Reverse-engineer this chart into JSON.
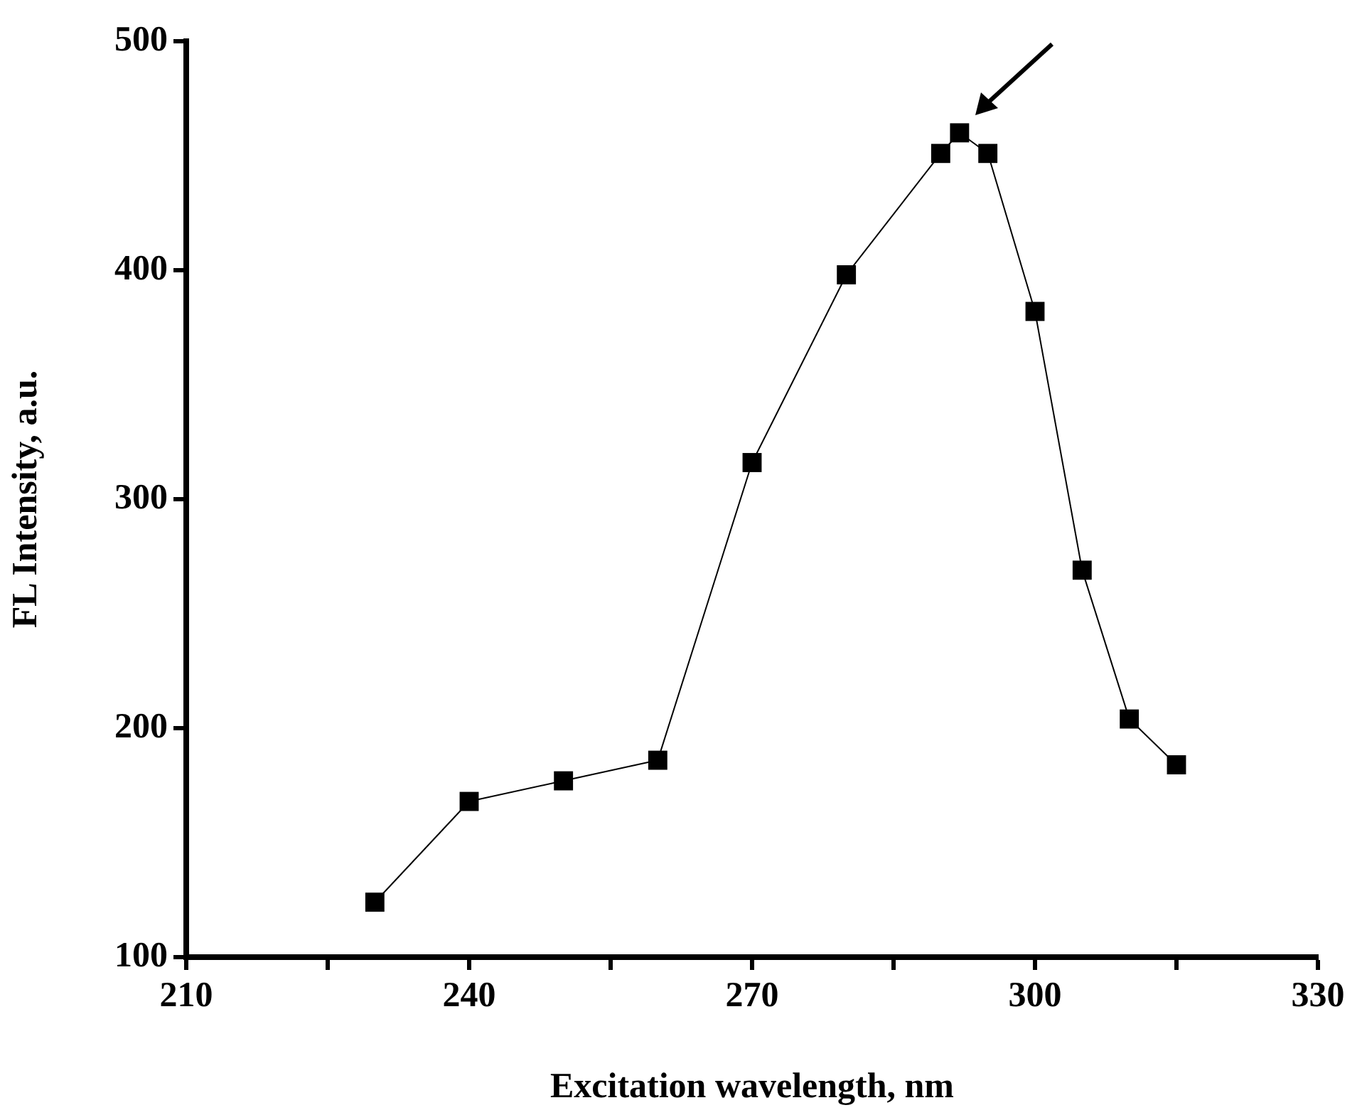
{
  "chart_data": {
    "type": "line",
    "xlabel": "Excitation wavelength, nm",
    "ylabel": "FL Intensity, a.u.",
    "x": [
      230,
      240,
      250,
      260,
      270,
      280,
      290,
      292,
      295,
      300,
      305,
      310,
      315
    ],
    "series": [
      {
        "color": "#000000",
        "values": [
          124,
          168,
          177,
          186,
          316,
          398,
          451,
          460,
          451,
          382,
          269,
          204,
          184
        ]
      }
    ],
    "xlim": [
      210,
      330
    ],
    "xticks": [
      210,
      {
        "value": 225,
        "label": null
      },
      240,
      {
        "value": 255,
        "label": null
      },
      270,
      {
        "value": 285,
        "label": null
      },
      300,
      {
        "value": 315,
        "label": null
      },
      330
    ],
    "ylim": [
      100,
      500
    ],
    "yticks": [
      100,
      200,
      300,
      400,
      500
    ],
    "marker": "square",
    "line_style": "solid",
    "legend": false,
    "grid": false
  }
}
